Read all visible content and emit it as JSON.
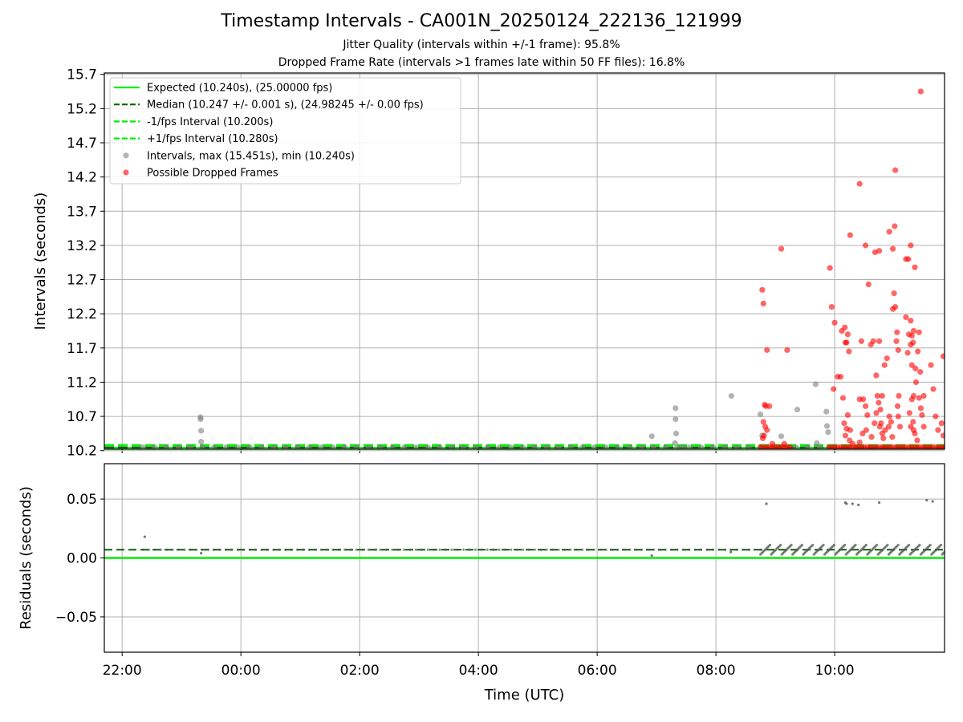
{
  "figure": {
    "title": "Timestamp Intervals - CA001N_20250124_222136_121999",
    "subtitle_1": "Jitter Quality (intervals within +/-1 frame): 95.8%",
    "subtitle_2": "Dropped Frame Rate (intervals >1 frames late within 50 FF files): 16.8%",
    "colors": {
      "expected": "#00ee00",
      "median": "#006400",
      "bound": "#00ee00",
      "intervals": "#808080",
      "dropped": "#ff0000",
      "grid": "#b0b0b0"
    }
  },
  "chart_data": [
    {
      "type": "scatter",
      "panel": "intervals",
      "ylabel": "Intervals (seconds)",
      "xlabel": "",
      "x_unit": "hours since 00:00 UTC (times before midnight are negative)",
      "xlim": [
        -2.3,
        11.85
      ],
      "ylim": [
        10.22,
        15.72
      ],
      "xticks": [
        -2,
        0,
        2,
        4,
        6,
        8,
        10
      ],
      "yticks": [
        10.2,
        10.7,
        11.2,
        11.7,
        12.2,
        12.7,
        13.2,
        13.7,
        14.2,
        14.7,
        15.2,
        15.7
      ],
      "ytick_labels": [
        "10.2",
        "10.7",
        "11.2",
        "11.7",
        "12.2",
        "12.7",
        "13.2",
        "13.7",
        "14.2",
        "14.7",
        "15.2",
        "15.7"
      ],
      "grid": "x and y",
      "legend_position": "top-left",
      "lines": [
        {
          "name": "Expected (10.240s), (25.00000 fps)",
          "y": 10.24,
          "style": "solid",
          "x_from": -2.3
        },
        {
          "name": "Median (10.247 +/- 0.001 s), (24.98245 +/- 0.00 fps)",
          "y": 10.247,
          "style": "dashed",
          "x_from": -2.3
        },
        {
          "name": "-1/fps Interval (10.200s)",
          "y": 10.2,
          "style": "dashed",
          "x_from": -2.3
        },
        {
          "name": "+1/fps Interval (10.280s)",
          "y": 10.28,
          "style": "dashed",
          "x_from": -2.3
        }
      ],
      "series": [
        {
          "name": "Intervals, max (15.451s), min (10.240s)",
          "baseline": {
            "y": 10.247,
            "x_from": -1.65,
            "x_to": 9.9,
            "step": 0.2
          },
          "points": [
            [
              -0.68,
              10.69
            ],
            [
              -0.68,
              10.66
            ],
            [
              -0.67,
              10.49
            ],
            [
              -0.67,
              10.33
            ],
            [
              6.92,
              10.41
            ],
            [
              7.32,
              10.82
            ],
            [
              7.32,
              10.66
            ],
            [
              7.33,
              10.45
            ],
            [
              7.31,
              10.31
            ],
            [
              7.45,
              10.25
            ],
            [
              8.26,
              11.0
            ],
            [
              8.75,
              10.73
            ],
            [
              8.78,
              10.42
            ],
            [
              9.1,
              10.41
            ],
            [
              9.37,
              10.8
            ],
            [
              9.68,
              11.17
            ],
            [
              9.7,
              10.31
            ],
            [
              9.86,
              10.77
            ],
            [
              9.87,
              10.56
            ],
            [
              9.89,
              10.47
            ]
          ]
        },
        {
          "name": "Possible Dropped Frames",
          "baseline": {
            "y": 10.25,
            "x_from": 8.75,
            "x_to": 11.85,
            "step": 0.05,
            "gap": [
              9.3,
              9.9
            ]
          },
          "points": [
            [
              8.78,
              12.55
            ],
            [
              8.8,
              12.35
            ],
            [
              8.86,
              11.67
            ],
            [
              8.84,
              10.85
            ],
            [
              8.9,
              10.85
            ],
            [
              8.82,
              10.87
            ],
            [
              8.8,
              10.62
            ],
            [
              8.83,
              10.55
            ],
            [
              8.86,
              10.5
            ],
            [
              8.81,
              10.42
            ],
            [
              8.79,
              10.38
            ],
            [
              9.1,
              13.15
            ],
            [
              9.2,
              11.67
            ],
            [
              8.95,
              10.3
            ],
            [
              9.15,
              10.3
            ],
            [
              9.92,
              12.87
            ],
            [
              9.95,
              12.3
            ],
            [
              10.0,
              12.07
            ],
            [
              10.05,
              11.28
            ],
            [
              9.98,
              11.1
            ],
            [
              10.12,
              11.95
            ],
            [
              10.17,
              12.0
            ],
            [
              10.22,
              11.9
            ],
            [
              10.18,
              11.78
            ],
            [
              10.2,
              11.78
            ],
            [
              10.24,
              11.65
            ],
            [
              10.1,
              11.28
            ],
            [
              10.14,
              10.97
            ],
            [
              10.22,
              10.72
            ],
            [
              10.16,
              10.6
            ],
            [
              10.2,
              10.52
            ],
            [
              10.18,
              10.42
            ],
            [
              10.25,
              10.35
            ],
            [
              10.3,
              10.3
            ],
            [
              10.26,
              10.5
            ],
            [
              10.26,
              13.35
            ],
            [
              10.42,
              14.1
            ],
            [
              10.52,
              13.2
            ],
            [
              10.57,
              12.63
            ],
            [
              10.68,
              13.1
            ],
            [
              10.75,
              13.12
            ],
            [
              10.45,
              11.8
            ],
            [
              10.65,
              11.8
            ],
            [
              10.75,
              11.8
            ],
            [
              10.61,
              11.75
            ],
            [
              10.7,
              11.3
            ],
            [
              10.42,
              10.95
            ],
            [
              10.48,
              10.95
            ],
            [
              10.52,
              10.85
            ],
            [
              10.55,
              10.72
            ],
            [
              10.47,
              10.45
            ],
            [
              10.53,
              10.5
            ],
            [
              10.42,
              10.32
            ],
            [
              10.62,
              10.4
            ],
            [
              10.67,
              10.6
            ],
            [
              10.7,
              10.75
            ],
            [
              10.72,
              11.0
            ],
            [
              10.74,
              10.9
            ],
            [
              10.77,
              10.8
            ],
            [
              10.8,
              11.0
            ],
            [
              10.78,
              10.6
            ],
            [
              10.76,
              10.55
            ],
            [
              10.8,
              10.45
            ],
            [
              10.82,
              10.38
            ],
            [
              10.85,
              10.5
            ],
            [
              10.84,
              11.45
            ],
            [
              10.88,
              11.55
            ],
            [
              10.92,
              10.7
            ],
            [
              10.95,
              10.62
            ],
            [
              10.91,
              10.55
            ],
            [
              10.97,
              10.4
            ],
            [
              10.92,
              13.4
            ],
            [
              10.98,
              13.15
            ],
            [
              11.01,
              13.48
            ],
            [
              11.02,
              14.3
            ],
            [
              11.0,
              12.5
            ],
            [
              10.98,
              12.27
            ],
            [
              11.02,
              12.3
            ],
            [
              11.05,
              11.93
            ],
            [
              11.07,
              11.67
            ],
            [
              11.04,
              11.8
            ],
            [
              11.08,
              11.0
            ],
            [
              11.06,
              10.85
            ],
            [
              11.07,
              10.7
            ],
            [
              11.1,
              10.55
            ],
            [
              11.2,
              13.0
            ],
            [
              11.24,
              13.0
            ],
            [
              11.28,
              13.2
            ],
            [
              11.35,
              12.88
            ],
            [
              11.2,
              12.15
            ],
            [
              11.28,
              12.1
            ],
            [
              11.33,
              11.95
            ],
            [
              11.25,
              11.9
            ],
            [
              11.3,
              11.88
            ],
            [
              11.42,
              11.93
            ],
            [
              11.32,
              11.78
            ],
            [
              11.28,
              11.75
            ],
            [
              11.23,
              11.63
            ],
            [
              11.3,
              11.45
            ],
            [
              11.36,
              11.4
            ],
            [
              11.37,
              11.2
            ],
            [
              11.33,
              11.0
            ],
            [
              11.3,
              10.95
            ],
            [
              11.26,
              10.75
            ],
            [
              11.32,
              10.62
            ],
            [
              11.28,
              10.55
            ],
            [
              11.33,
              10.5
            ],
            [
              11.35,
              10.45
            ],
            [
              11.39,
              10.35
            ],
            [
              11.4,
              11.65
            ],
            [
              11.44,
              11.35
            ],
            [
              11.42,
              10.97
            ],
            [
              11.45,
              10.82
            ],
            [
              11.47,
              10.72
            ],
            [
              11.5,
              10.55
            ],
            [
              11.45,
              15.45
            ],
            [
              11.5,
              11.0
            ],
            [
              11.62,
              11.45
            ],
            [
              11.66,
              11.1
            ],
            [
              11.7,
              10.7
            ],
            [
              11.74,
              10.5
            ],
            [
              11.8,
              10.6
            ],
            [
              11.83,
              11.58
            ],
            [
              11.83,
              10.42
            ]
          ]
        }
      ],
      "legend": [
        "Expected (10.240s), (25.00000 fps)",
        "Median (10.247 +/- 0.001 s), (24.98245 +/- 0.00 fps)",
        "-1/fps Interval (10.200s)",
        "+1/fps Interval (10.280s)",
        "Intervals, max (15.451s), min (10.240s)",
        "Possible Dropped Frames"
      ]
    },
    {
      "type": "scatter",
      "panel": "residuals",
      "ylabel": "Residuals (seconds)",
      "xlabel": "Time (UTC)",
      "x_unit": "hours since 00:00 UTC (times before midnight are negative)",
      "xlim": [
        -2.3,
        11.85
      ],
      "ylim": [
        -0.08,
        0.08
      ],
      "xticks": [
        -2,
        0,
        2,
        4,
        6,
        8,
        10
      ],
      "xtick_labels": [
        "22:00",
        "00:00",
        "02:00",
        "04:00",
        "06:00",
        "08:00",
        "10:00"
      ],
      "yticks": [
        0.05,
        0.0,
        -0.05
      ],
      "ytick_labels": [
        "0.05",
        "0.00",
        "−0.05"
      ],
      "grid": "x and y",
      "lines": [
        {
          "name": "zero",
          "y": 0.0,
          "style": "solid"
        },
        {
          "name": "median",
          "y": 0.007,
          "style": "dashed"
        }
      ],
      "series": [
        {
          "name": "Residuals",
          "band": {
            "y": 0.007,
            "x_from": -1.65,
            "x_to": 8.75,
            "step": 0.1
          },
          "dense_band": {
            "y": 0.007,
            "x_from": 8.75,
            "x_to": 11.85,
            "step": 0.02,
            "spread": 0.004
          },
          "points": [
            [
              -1.62,
              0.018
            ],
            [
              -0.67,
              0.004
            ],
            [
              6.92,
              0.002
            ],
            [
              8.25,
              0.005
            ],
            [
              8.85,
              0.046
            ],
            [
              10.18,
              0.047
            ],
            [
              10.2,
              0.046
            ],
            [
              10.3,
              0.046
            ],
            [
              10.4,
              0.045
            ],
            [
              10.75,
              0.047
            ],
            [
              11.55,
              0.049
            ],
            [
              11.65,
              0.048
            ]
          ]
        }
      ]
    }
  ]
}
